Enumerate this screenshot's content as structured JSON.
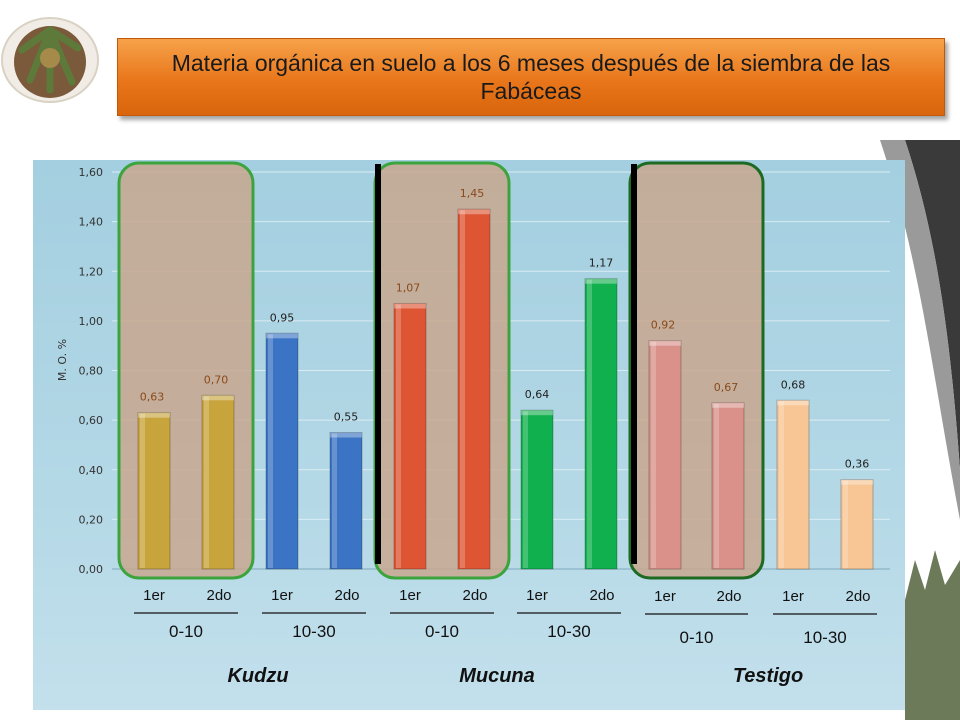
{
  "title": "Materia orgánica en suelo a los 6 meses después de la siembra de las Fabáceas",
  "chart_data": {
    "type": "bar",
    "ylabel": "M. O. %",
    "ylim": [
      0,
      1.6
    ],
    "yticks": [
      "0,00",
      "0,20",
      "0,40",
      "0,60",
      "0,80",
      "1,00",
      "1,20",
      "1,40",
      "1,60"
    ],
    "grid": true,
    "groups": [
      {
        "name": "Kudzu",
        "depths": [
          {
            "label": "0-10",
            "bars": [
              {
                "category": "1er",
                "value": 0.63,
                "label": "0,63",
                "color": "#c8a43c"
              },
              {
                "category": "2do",
                "value": 0.7,
                "label": "0,70",
                "color": "#c8a43c"
              }
            ]
          },
          {
            "label": "10-30",
            "bars": [
              {
                "category": "1er",
                "value": 0.95,
                "label": "0,95",
                "color": "#3b74c4"
              },
              {
                "category": "2do",
                "value": 0.55,
                "label": "0,55",
                "color": "#3b74c4"
              }
            ]
          }
        ]
      },
      {
        "name": "Mucuna",
        "depths": [
          {
            "label": "0-10",
            "bars": [
              {
                "category": "1er",
                "value": 1.07,
                "label": "1,07",
                "color": "#de5534"
              },
              {
                "category": "2do",
                "value": 1.45,
                "label": "1,45",
                "color": "#de5534"
              }
            ]
          },
          {
            "label": "10-30",
            "bars": [
              {
                "category": "1er",
                "value": 0.64,
                "label": "0,64",
                "color": "#11b04e"
              },
              {
                "category": "2do",
                "value": 1.17,
                "label": "1,17",
                "color": "#11b04e"
              }
            ]
          }
        ]
      },
      {
        "name": "Testigo",
        "depths": [
          {
            "label": "0-10",
            "bars": [
              {
                "category": "1er",
                "value": 0.92,
                "label": "0,92",
                "color": "#d9918a"
              },
              {
                "category": "2do",
                "value": 0.67,
                "label": "0,67",
                "color": "#d9918a"
              }
            ]
          },
          {
            "label": "10-30",
            "bars": [
              {
                "category": "1er",
                "value": 0.68,
                "label": "0,68",
                "color": "#f8c594"
              },
              {
                "category": "2do",
                "value": 0.36,
                "label": "0,36",
                "color": "#f8c594"
              }
            ]
          }
        ]
      }
    ]
  },
  "colors": {
    "title_banner": "#e9761a",
    "panel": "#a8d2e2",
    "highlight_fill": "#c8a78e",
    "highlight_border": "#3ca43c",
    "highlight_border_dark": "#1d6a22"
  }
}
